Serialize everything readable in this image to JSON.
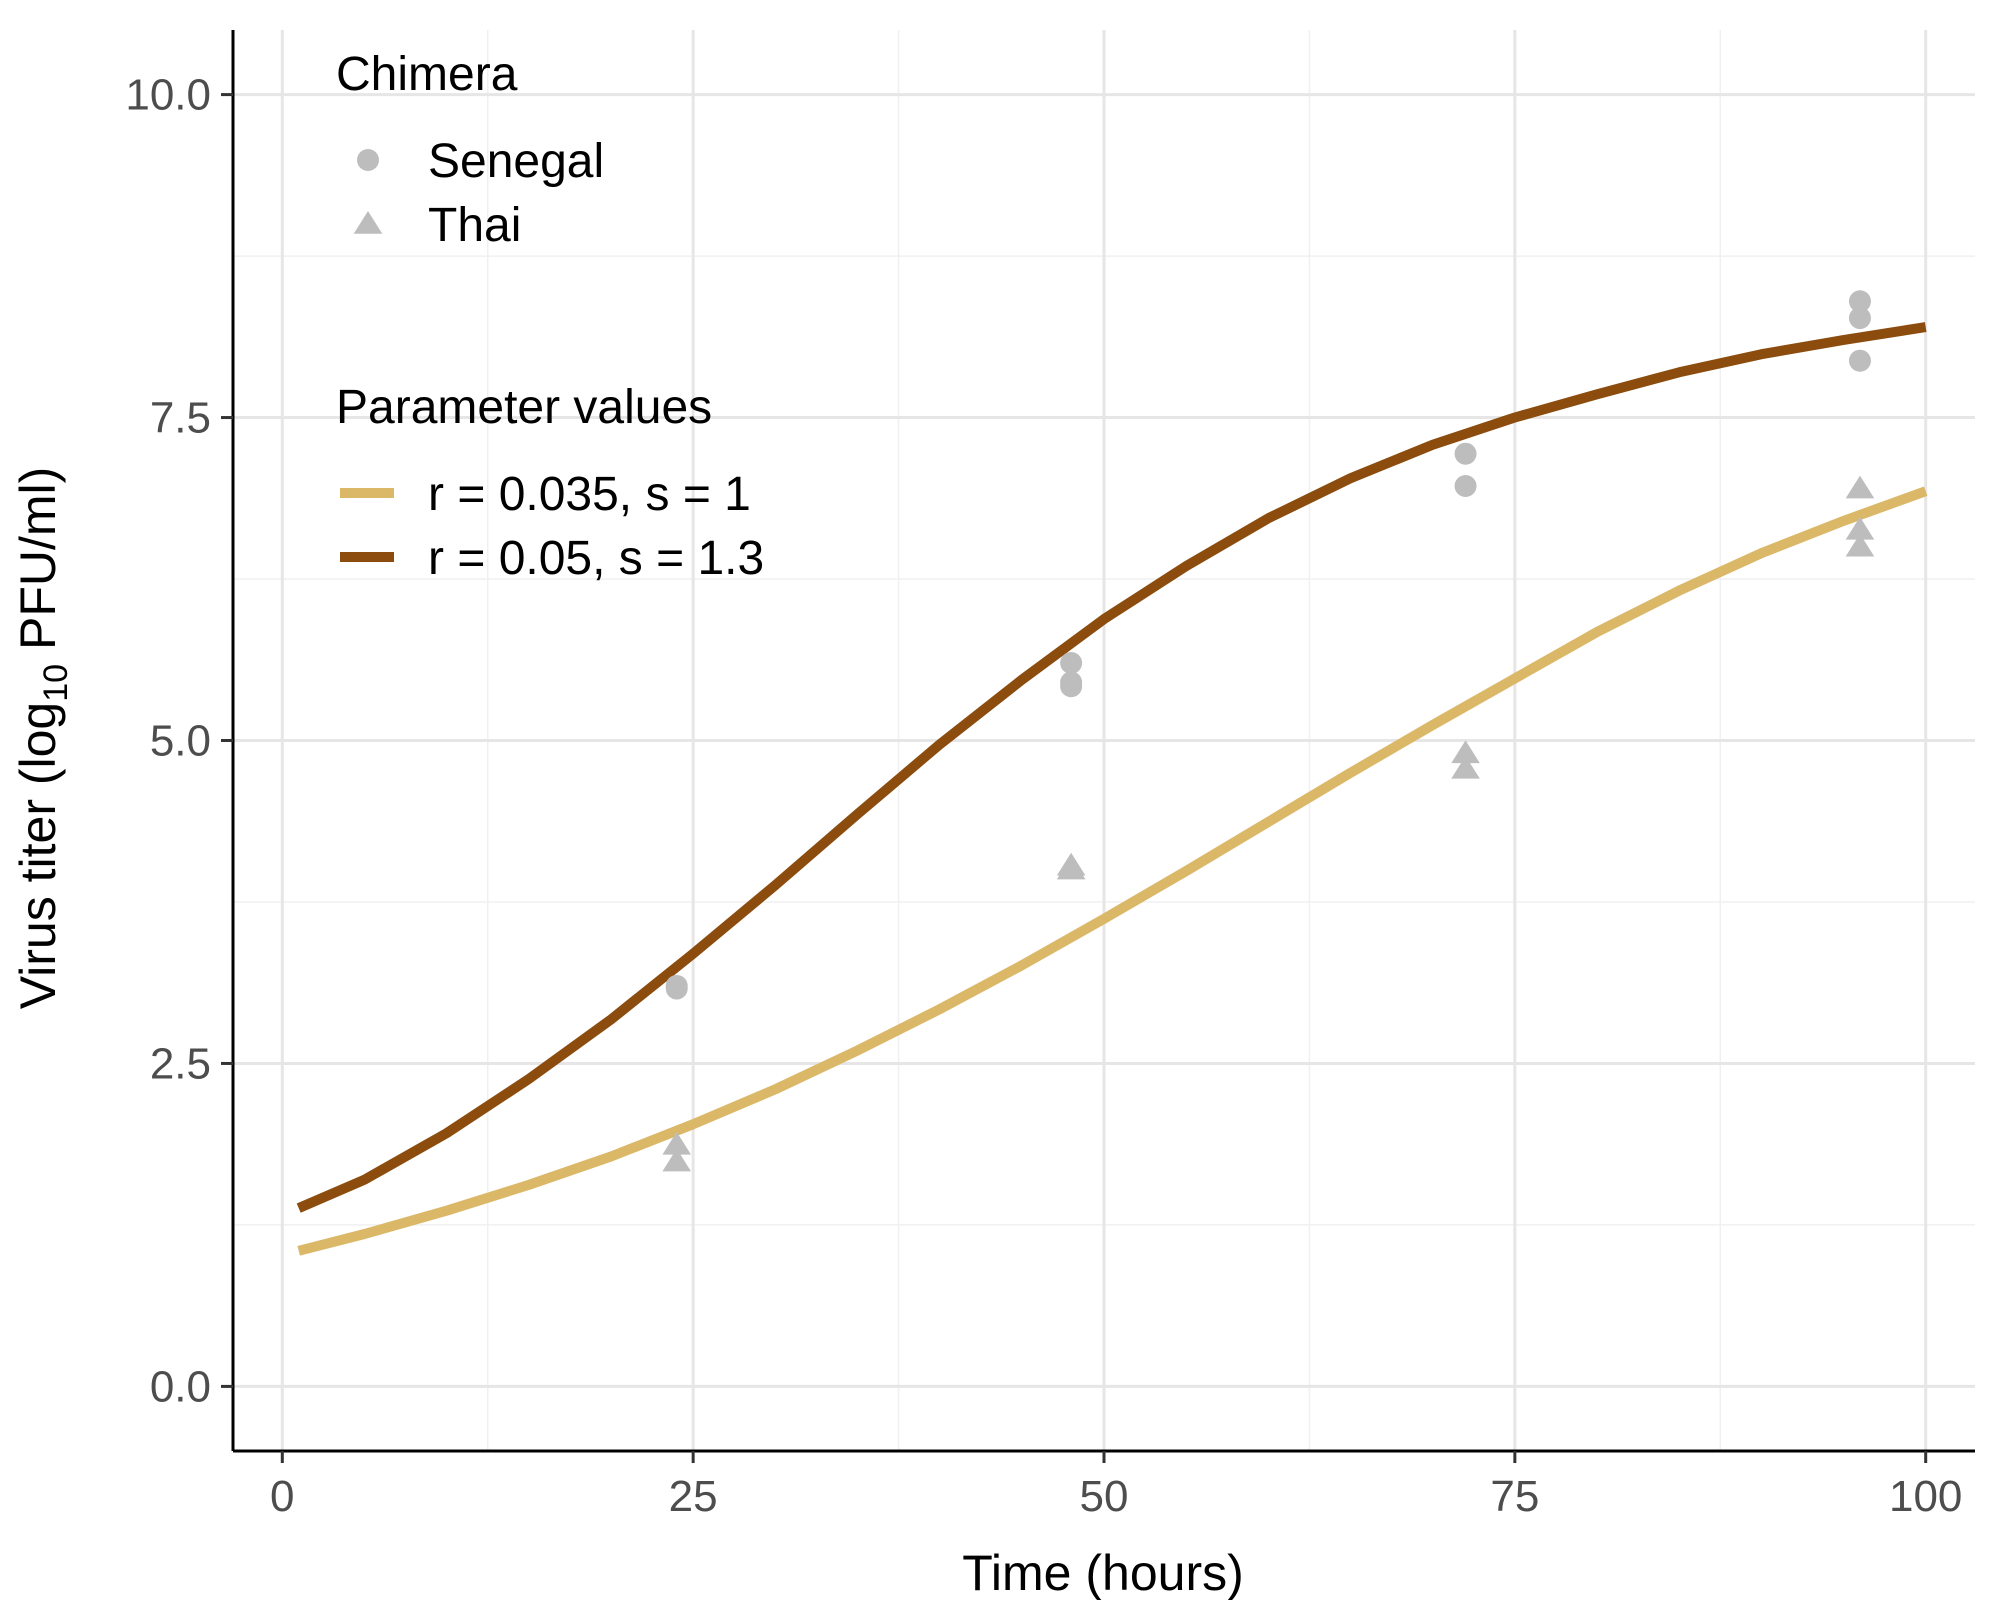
{
  "chart_data": {
    "type": "scatter",
    "xlabel": "Time (hours)",
    "ylabel_parts": {
      "before": "Virus titer (log",
      "subscript": "10",
      "after": " PFU/ml)"
    },
    "xlim": [
      -3,
      103
    ],
    "ylim": [
      -0.5,
      10.5
    ],
    "x_ticks": [
      0,
      25,
      50,
      75,
      100
    ],
    "x_tick_labels": [
      "0",
      "25",
      "50",
      "75",
      "100"
    ],
    "y_ticks": [
      0,
      2.5,
      5,
      7.5,
      10
    ],
    "y_tick_labels": [
      "0.0",
      "2.5",
      "5.0",
      "7.5",
      "10.0"
    ],
    "grid": true,
    "legend_position": "top-left",
    "point_color": "#bdbdbd",
    "point_legend_title": "Chimera",
    "point_series": [
      {
        "name": "Senegal",
        "shape": "circle",
        "points": [
          [
            24,
            3.08
          ],
          [
            24,
            3.1
          ],
          [
            48,
            5.45
          ],
          [
            48,
            5.42
          ],
          [
            48,
            5.6
          ],
          [
            72,
            7.22
          ],
          [
            72,
            6.97
          ],
          [
            96,
            8.4
          ],
          [
            96,
            8.27
          ],
          [
            96,
            7.94
          ]
        ]
      },
      {
        "name": "Thai",
        "shape": "triangle",
        "points": [
          [
            24,
            1.87
          ],
          [
            24,
            1.74
          ],
          [
            48,
            4.03
          ],
          [
            48,
            4.0
          ],
          [
            72,
            4.9
          ],
          [
            72,
            4.78
          ],
          [
            96,
            6.95
          ],
          [
            96,
            6.63
          ],
          [
            96,
            6.5
          ]
        ]
      }
    ],
    "line_legend_title": "Parameter values",
    "line_series": [
      {
        "name": "r = 0.035, s = 1",
        "color": "#dbb868",
        "x": [
          1,
          5,
          10,
          15,
          20,
          25,
          30,
          35,
          40,
          45,
          50,
          55,
          60,
          65,
          70,
          75,
          80,
          85,
          90,
          95,
          100
        ],
        "y": [
          1.05,
          1.18,
          1.36,
          1.56,
          1.78,
          2.03,
          2.3,
          2.6,
          2.92,
          3.26,
          3.62,
          3.99,
          4.37,
          4.75,
          5.12,
          5.48,
          5.84,
          6.16,
          6.45,
          6.7,
          6.93
        ]
      },
      {
        "name": "r = 0.05, s = 1.3",
        "color": "#8b4c0e",
        "x": [
          1,
          5,
          10,
          15,
          20,
          25,
          30,
          35,
          40,
          45,
          50,
          55,
          60,
          65,
          70,
          75,
          80,
          85,
          90,
          95,
          100
        ],
        "y": [
          1.38,
          1.6,
          1.96,
          2.38,
          2.84,
          3.35,
          3.88,
          4.43,
          4.97,
          5.47,
          5.94,
          6.35,
          6.72,
          7.03,
          7.29,
          7.5,
          7.68,
          7.85,
          7.99,
          8.1,
          8.2
        ]
      }
    ]
  }
}
